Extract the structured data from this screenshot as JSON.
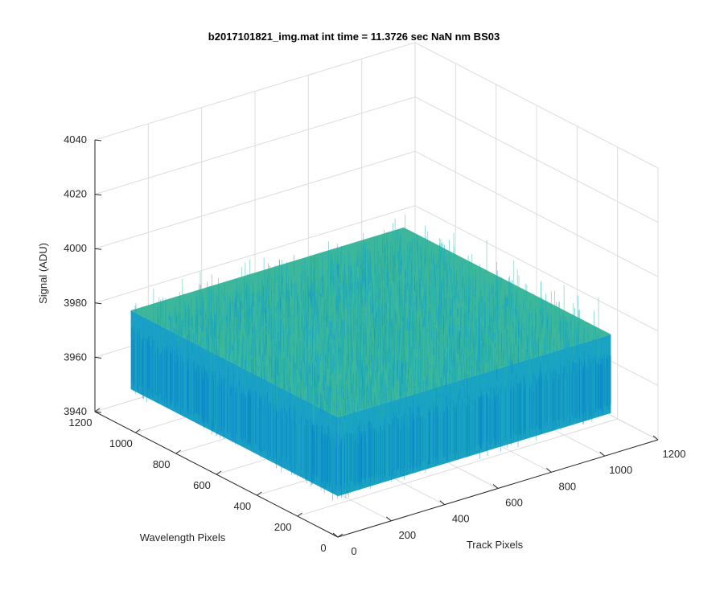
{
  "chart_data": {
    "type": "surface",
    "title": "b2017101821_img.mat int time = 11.3726 sec  NaN nm BS03",
    "xlabel": "Track Pixels",
    "ylabel": "Wavelength Pixels",
    "zlabel": "Signal (ADU)",
    "xlim": [
      0,
      1200
    ],
    "ylim": [
      0,
      1200
    ],
    "zlim": [
      3940,
      4040
    ],
    "xticks": [
      0,
      200,
      400,
      600,
      800,
      1000,
      1200
    ],
    "yticks": [
      0,
      200,
      400,
      600,
      800,
      1000,
      1200
    ],
    "zticks": [
      3940,
      3960,
      3980,
      4000,
      4020,
      4040
    ],
    "data_extent": {
      "x": [
        1,
        1024
      ],
      "y": [
        1,
        1024
      ]
    },
    "signal": {
      "mean": 3980,
      "noise_range": [
        3955,
        4015
      ]
    },
    "colormap": "parula",
    "grid": true,
    "colors": {
      "low": "#0072bd",
      "mid": "#1cb5b3",
      "high": "#c8c85a",
      "axis": "#262626",
      "grid": "#dcdcdc"
    }
  }
}
